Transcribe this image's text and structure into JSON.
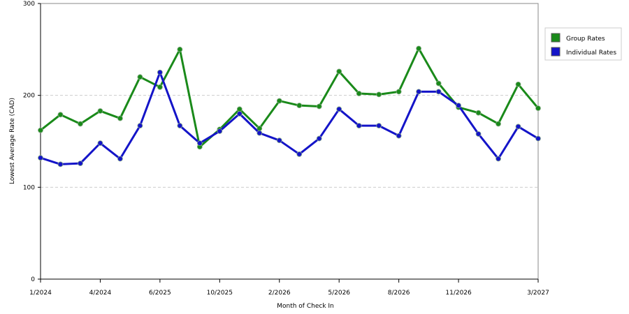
{
  "chart_data": {
    "type": "line",
    "x_label": "Month of Check In",
    "y_label": "Lowest Average Rate (CAD)",
    "categories": [
      "1/2024",
      null,
      null,
      "4/2024",
      null,
      null,
      "6/2025",
      null,
      null,
      "10/2025",
      null,
      null,
      "2/2026",
      null,
      null,
      "5/2026",
      null,
      null,
      "8/2026",
      null,
      null,
      "11/2026",
      null,
      null,
      null,
      "3/2027"
    ],
    "series": [
      {
        "name": "Group Rates",
        "color": "#1a8a1a",
        "values": [
          162,
          179,
          169,
          183,
          175,
          220,
          209,
          250,
          144,
          163,
          185,
          164,
          194,
          189,
          188,
          226,
          202,
          201,
          204,
          251,
          213,
          187,
          181,
          169,
          212,
          186
        ]
      },
      {
        "name": "Individual Rates",
        "color": "#1414c8",
        "values": [
          132,
          125,
          126,
          148,
          131,
          167,
          225,
          167,
          148,
          161,
          180,
          159,
          151,
          136,
          153,
          185,
          167,
          167,
          156,
          204,
          204,
          189,
          158,
          131,
          166,
          153
        ]
      }
    ],
    "ylim": [
      0,
      300
    ],
    "yticks": [
      0,
      100,
      200,
      300
    ],
    "grid": true,
    "legend": "right"
  }
}
